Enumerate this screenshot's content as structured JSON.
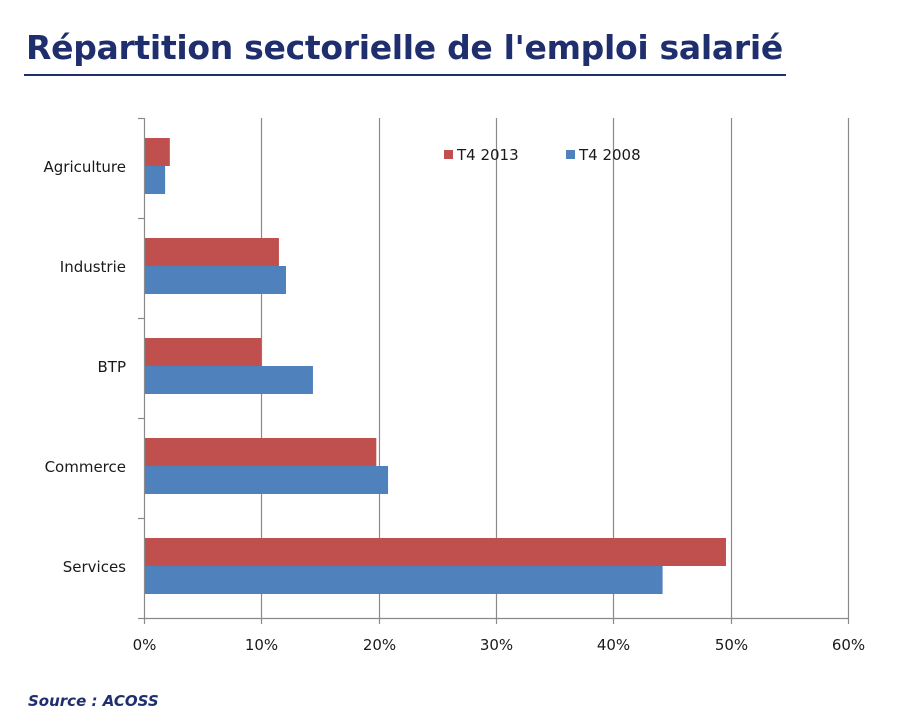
{
  "header": {
    "title": "Répartition sectorielle de l'emploi salarié"
  },
  "footer": {
    "source": "Source : ACOSS"
  },
  "chart_data": {
    "type": "bar",
    "orientation": "horizontal",
    "categories": [
      "Agriculture",
      "Industrie",
      "BTP",
      "Commerce",
      "Services"
    ],
    "series": [
      {
        "name": "T4 2013",
        "color": "#c0504d",
        "values": [
          2.2,
          11.5,
          10.0,
          19.8,
          49.6
        ]
      },
      {
        "name": "T4 2008",
        "color": "#4f81bd",
        "values": [
          1.8,
          12.1,
          14.4,
          20.8,
          44.2
        ]
      }
    ],
    "xlim": [
      0,
      60
    ],
    "xticks": [
      0,
      10,
      20,
      30,
      40,
      50,
      60
    ],
    "tick_labels": [
      "0%",
      "10%",
      "20%",
      "30%",
      "40%",
      "50%",
      "60%"
    ],
    "grid": true,
    "legend_position": "top-right"
  }
}
